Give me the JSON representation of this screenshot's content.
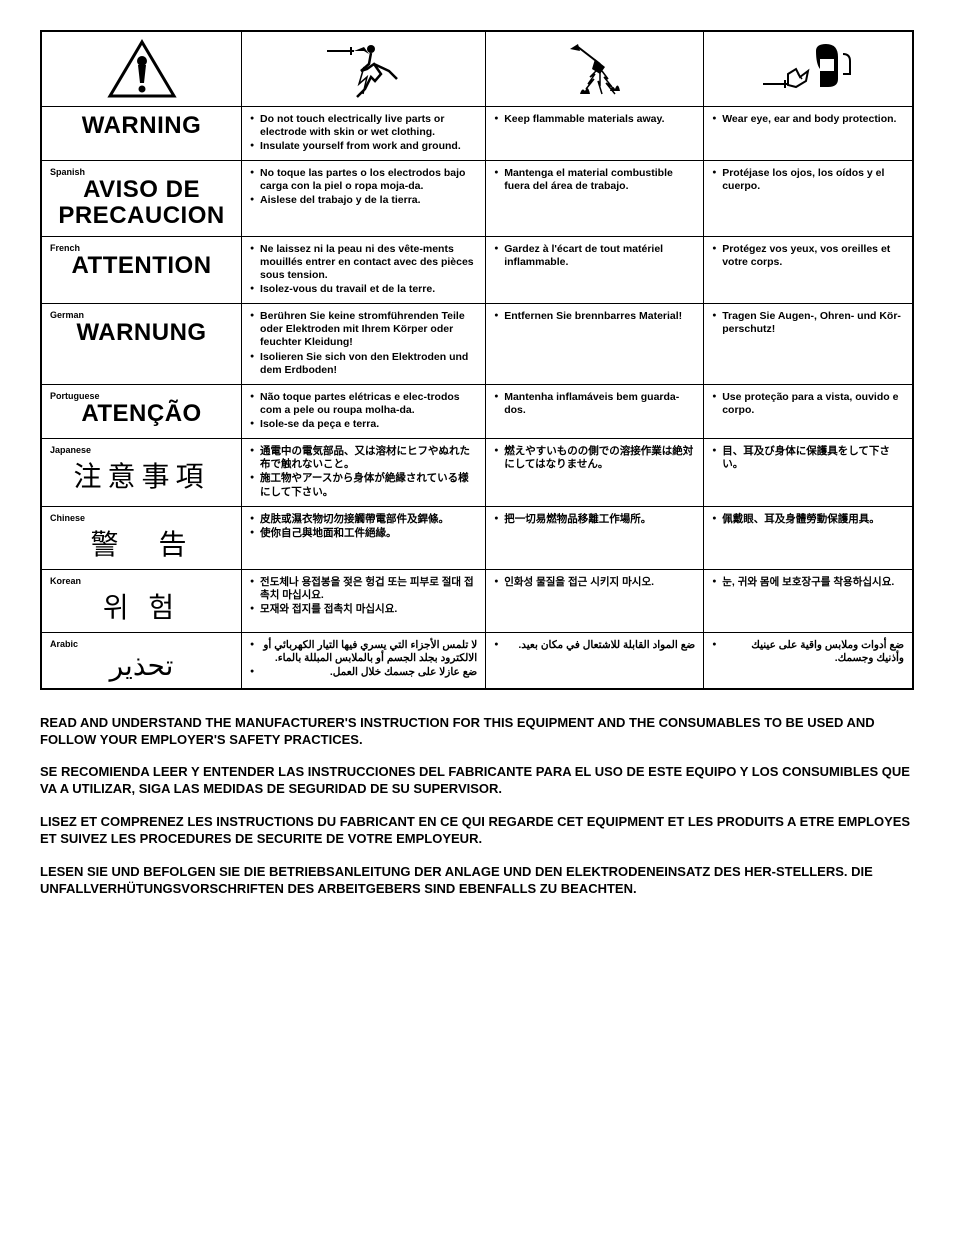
{
  "icons": [
    "exclamation-triangle",
    "electric-shock",
    "fire-spark",
    "protection-gear"
  ],
  "languages": [
    {
      "tag": "",
      "word": "WARNING",
      "wordClass": "warning-word",
      "col2": [
        "Do not touch electrically live parts or electrode with skin or wet clothing.",
        "Insulate yourself from work and ground."
      ],
      "col3": [
        "Keep flammable materials away."
      ],
      "col4": [
        "Wear eye, ear and body protection."
      ]
    },
    {
      "tag": "Spanish",
      "word": "AVISO DE PRECAUCION",
      "wordClass": "warning-word",
      "col2": [
        "No toque las partes o los electrodos bajo carga con la piel o ropa moja-da.",
        "Aislese del trabajo y de la tierra."
      ],
      "col3": [
        "Mantenga el material combustible fuera del área de trabajo."
      ],
      "col4": [
        "Protéjase los ojos, los oídos y el cuerpo."
      ]
    },
    {
      "tag": "French",
      "word": "ATTENTION",
      "wordClass": "warning-word",
      "col2": [
        "Ne laissez ni la peau ni des vête-ments mouillés entrer en contact avec des pièces sous tension.",
        "Isolez-vous du travail et de la terre."
      ],
      "col3": [
        "Gardez à l'écart de tout matériel inflammable."
      ],
      "col4": [
        "Protégez vos yeux, vos oreilles et votre corps."
      ]
    },
    {
      "tag": "German",
      "word": "WARNUNG",
      "wordClass": "warning-word",
      "col2": [
        "Berühren Sie keine stromführenden Teile oder Elektroden mit Ihrem Körper oder feuchter Kleidung!",
        "Isolieren Sie sich von den Elektroden und dem Erdboden!"
      ],
      "col3": [
        "Entfernen Sie brennbarres Material!"
      ],
      "col4": [
        "Tragen Sie Augen-, Ohren- und Kör-perschutz!"
      ]
    },
    {
      "tag": "Portuguese",
      "word": "ATENÇÃO",
      "wordClass": "warning-word",
      "col2": [
        "Não toque partes elétricas e elec-trodos com a pele ou roupa molha-da.",
        "Isole-se da peça e terra."
      ],
      "col3": [
        "Mantenha inflamáveis bem guarda-dos."
      ],
      "col4": [
        "Use proteção para a vista, ouvido e corpo."
      ]
    },
    {
      "tag": "Japanese",
      "word": "注意事項",
      "wordClass": "warning-word-cjk",
      "col2": [
        "通電中の電気部品、又は溶材にヒフやぬれた布で触れないこと。",
        "施工物やアースから身体が絶縁されている様にして下さい。"
      ],
      "col3": [
        "燃えやすいものの側での溶接作業は絶対にしてはなりません。"
      ],
      "col4": [
        "目、耳及び身体に保護具をして下さい。"
      ]
    },
    {
      "tag": "Chinese",
      "word": "警　告",
      "wordClass": "warning-word-cjk",
      "col2": [
        "皮肤或濕衣物切勿接觸帶電部件及銲條。",
        "使你自己與地面和工件絕緣。"
      ],
      "col3": [
        "把一切易燃物品移離工作場所。"
      ],
      "col4": [
        "佩戴眼、耳及身體勞動保護用具。"
      ]
    },
    {
      "tag": "Korean",
      "word": "위 험",
      "wordClass": "warning-word-cjk",
      "col2": [
        "전도체나 용접봉을 젖은 헝겁 또는 피부로 절대 접촉치 마십시요.",
        "모재와 접지를 접촉치 마십시요."
      ],
      "col3": [
        "인화성 물질을 접근 시키지 마시오."
      ],
      "col4": [
        "눈, 귀와 몸에 보호장구를 착용하십시요."
      ]
    },
    {
      "tag": "Arabic",
      "word": "تحذير",
      "wordClass": "warning-word-cjk",
      "arabic": true,
      "col2": [
        "لا تلمس الأجزاء التي يسري فيها التيار الكهربائي أو الالكترود بجلد الجسم أو بالملابس المبللة بالماء.",
        "ضع عازلا على جسمك خلال العمل."
      ],
      "col3": [
        "ضع المواد القابلة للاشتعال في مكان بعيد."
      ],
      "col4": [
        "ضع أدوات وملابس واقية على عينيك وأذنيك وجسمك."
      ]
    }
  ],
  "instructions": [
    "READ AND UNDERSTAND THE MANUFACTURER'S INSTRUCTION FOR THIS EQUIPMENT AND THE CONSUMABLES TO BE USED AND FOLLOW YOUR EMPLOYER'S SAFETY PRACTICES.",
    "SE RECOMIENDA LEER Y ENTENDER LAS INSTRUCCIONES DEL FABRICANTE PARA EL USO DE ESTE EQUIPO Y LOS CONSUMIBLES QUE VA A UTILIZAR, SIGA LAS MEDIDAS DE SEGURIDAD DE SU SUPERVISOR.",
    "LISEZ ET COMPRENEZ LES INSTRUCTIONS DU FABRICANT EN CE QUI REGARDE CET EQUIPMENT ET LES PRODUITS A ETRE EMPLOYES ET SUIVEZ LES PROCEDURES DE SECURITE DE VOTRE EMPLOYEUR.",
    "LESEN SIE UND BEFOLGEN SIE DIE BETRIEBSANLEITUNG DER ANLAGE UND DEN ELEKTRODENEINSATZ DES HER-STELLERS. DIE UNFALLVERHÜTUNGSVORSCHRIFTEN DES ARBEITGEBERS SIND EBENFALLS ZU BEACHTEN."
  ],
  "colors": {
    "text": "#000000",
    "border": "#000000",
    "bg": "#ffffff"
  }
}
